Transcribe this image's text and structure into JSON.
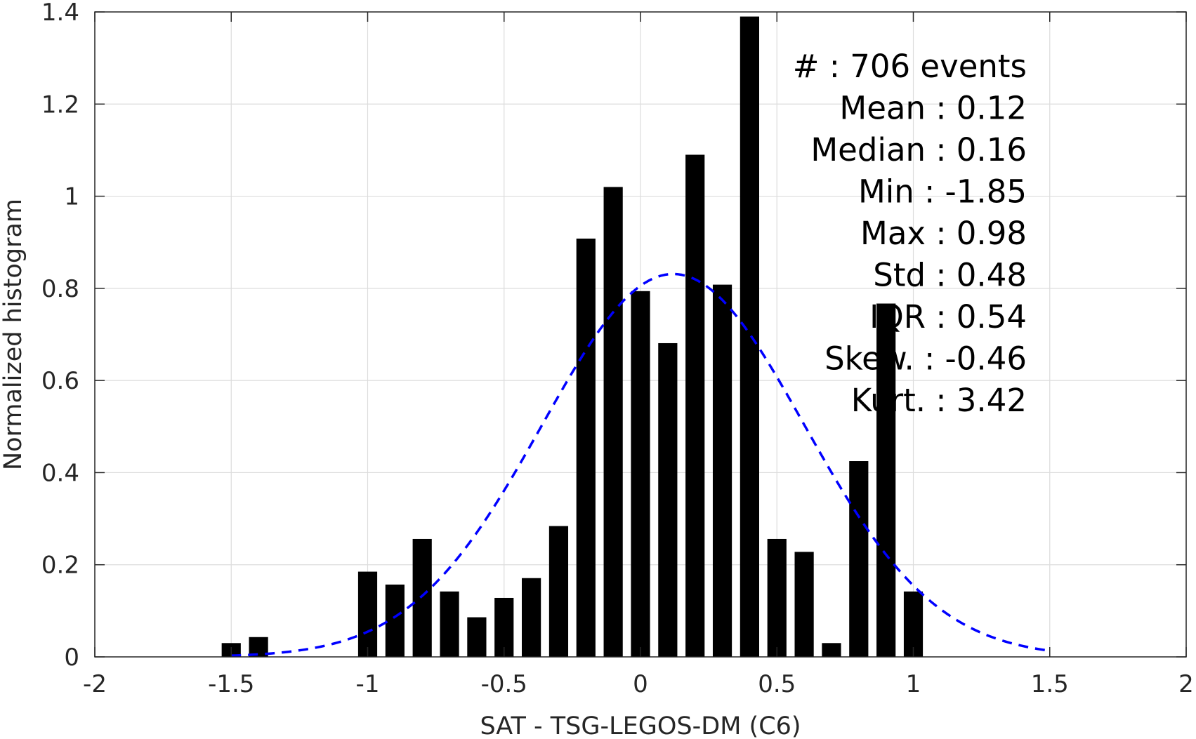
{
  "chart_data": {
    "type": "bar",
    "xlabel": "SAT - TSG-LEGOS-DM (C6)",
    "ylabel": "Normalized histogram",
    "xlim": [
      -2,
      2
    ],
    "ylim": [
      0,
      1.4
    ],
    "xticks": [
      -2,
      -1.5,
      -1,
      -0.5,
      0,
      0.5,
      1,
      1.5,
      2
    ],
    "yticks": [
      0,
      0.2,
      0.4,
      0.6,
      0.8,
      1,
      1.2,
      1.4
    ],
    "xtick_labels": [
      "-2",
      "-1.5",
      "-1",
      "-0.5",
      "0",
      "0.5",
      "1",
      "1.5",
      "2"
    ],
    "ytick_labels": [
      "0",
      "0.2",
      "0.4",
      "0.6",
      "0.8",
      "1",
      "1.2",
      "1.4"
    ],
    "grid": true,
    "bar_color": "#000000",
    "curve_color": "#0000ff",
    "bins": {
      "centers": [
        -1.5,
        -1.4,
        -1.0,
        -0.9,
        -0.8,
        -0.7,
        -0.6,
        -0.5,
        -0.4,
        -0.3,
        -0.2,
        -0.1,
        0.0,
        0.1,
        0.2,
        0.3,
        0.4,
        0.5,
        0.6,
        0.7,
        0.8,
        0.9,
        1.0
      ],
      "values": [
        0.03,
        0.043,
        0.185,
        0.157,
        0.256,
        0.142,
        0.086,
        0.128,
        0.171,
        0.284,
        0.908,
        1.02,
        0.794,
        0.681,
        1.09,
        0.808,
        1.39,
        0.256,
        0.228,
        0.03,
        0.425,
        0.767,
        0.142
      ]
    },
    "fit_curve": {
      "type": "normal",
      "style": "dashed",
      "mean": 0.12,
      "std": 0.48,
      "x_range": [
        -1.5,
        1.5
      ]
    },
    "annotation": {
      "lines": [
        "#  : 706 events",
        "Mean : 0.12",
        "Median : 0.16",
        "Min : -1.85",
        "Max : 0.98",
        "Std : 0.48",
        "IQR : 0.54",
        "Skew. : -0.46",
        "Kurt. : 3.42"
      ]
    }
  }
}
